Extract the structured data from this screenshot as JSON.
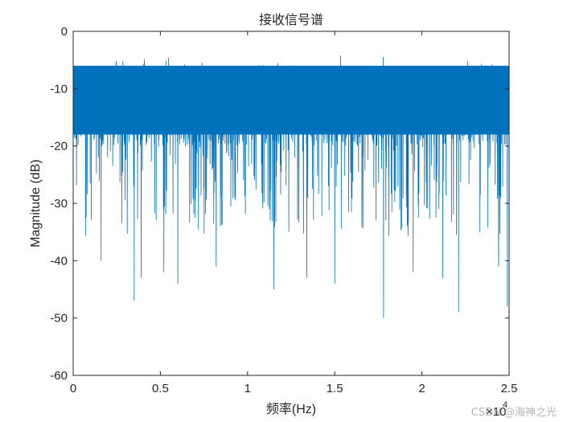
{
  "chart_data": {
    "type": "line",
    "title": "接收信号谱",
    "xlabel": "频率(Hz)",
    "ylabel": "Magnitude (dB)",
    "xlim": [
      0,
      25000
    ],
    "ylim": [
      -60,
      0
    ],
    "x_tick_labels": [
      "0",
      "0.5",
      "1",
      "1.5",
      "2",
      "2.5"
    ],
    "x_tick_values": [
      0,
      5000,
      10000,
      15000,
      20000,
      25000
    ],
    "x_exponent_label": "×10",
    "x_exponent_power": "4",
    "y_tick_labels": [
      "0",
      "-10",
      "-20",
      "-30",
      "-40",
      "-50",
      "-60"
    ],
    "y_tick_values": [
      0,
      -10,
      -20,
      -30,
      -40,
      -50,
      -60
    ],
    "grid": false,
    "series": [
      {
        "color": "#0072BD",
        "description": "dense noise-like magnitude spectrum",
        "band_top_db": -7,
        "band_bottom_db": -20,
        "peak_max_db": -4,
        "notable_dips": [
          {
            "x": 1600,
            "y": -40
          },
          {
            "x": 3500,
            "y": -47
          },
          {
            "x": 3900,
            "y": -43
          },
          {
            "x": 5200,
            "y": -42
          },
          {
            "x": 6000,
            "y": -44
          },
          {
            "x": 8200,
            "y": -41
          },
          {
            "x": 11500,
            "y": -45
          },
          {
            "x": 13400,
            "y": -43
          },
          {
            "x": 15000,
            "y": -44
          },
          {
            "x": 17800,
            "y": -50
          },
          {
            "x": 19500,
            "y": -42
          },
          {
            "x": 21200,
            "y": -43
          },
          {
            "x": 22100,
            "y": -49
          },
          {
            "x": 24400,
            "y": -41
          },
          {
            "x": 24900,
            "y": -48
          }
        ]
      }
    ]
  },
  "watermark": "CSDN @海神之光"
}
